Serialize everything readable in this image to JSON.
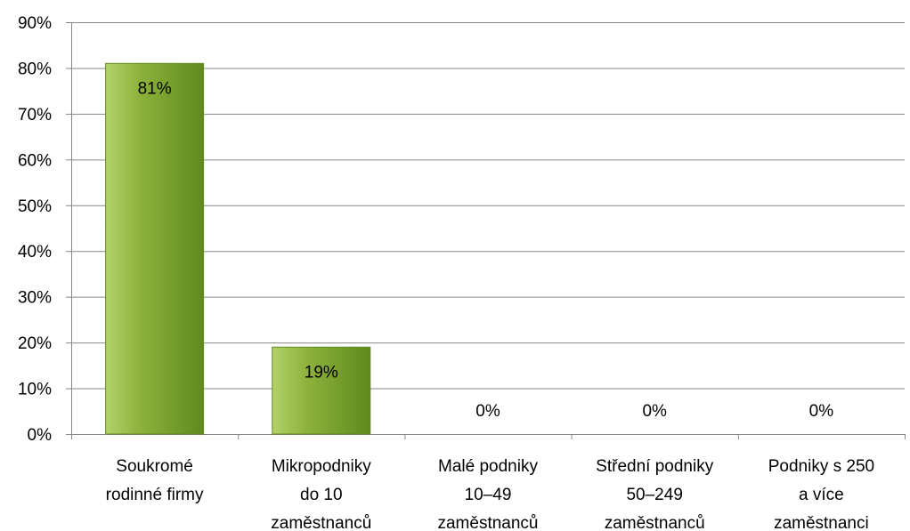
{
  "chart_data": {
    "type": "bar",
    "title": "",
    "xlabel": "",
    "ylabel": "",
    "categories": [
      [
        "Soukromé",
        "rodinné firmy"
      ],
      [
        "Mikropodniky",
        "do 10",
        "zaměstnanců"
      ],
      [
        "Malé podniky",
        "10–49",
        "zaměstnanců"
      ],
      [
        "Střední podniky",
        "50–249",
        "zaměstnanců"
      ],
      [
        "Podniky s 250",
        "a více",
        "zaměstnanci"
      ]
    ],
    "values": [
      81,
      19,
      0,
      0,
      0
    ],
    "data_labels": [
      "81%",
      "19%",
      "0%",
      "0%",
      "0%"
    ],
    "ylim": [
      0,
      90
    ],
    "yticks": [
      0,
      10,
      20,
      30,
      40,
      50,
      60,
      70,
      80,
      90
    ],
    "ytick_labels": [
      "0%",
      "10%",
      "20%",
      "30%",
      "40%",
      "50%",
      "60%",
      "70%",
      "80%",
      "90%"
    ],
    "grid": true,
    "legend": "none",
    "colors": {
      "bar_light": "#b3d16a",
      "bar_mid": "#8db23c",
      "bar_dark": "#5f8a1e",
      "grid": "#868686"
    }
  }
}
